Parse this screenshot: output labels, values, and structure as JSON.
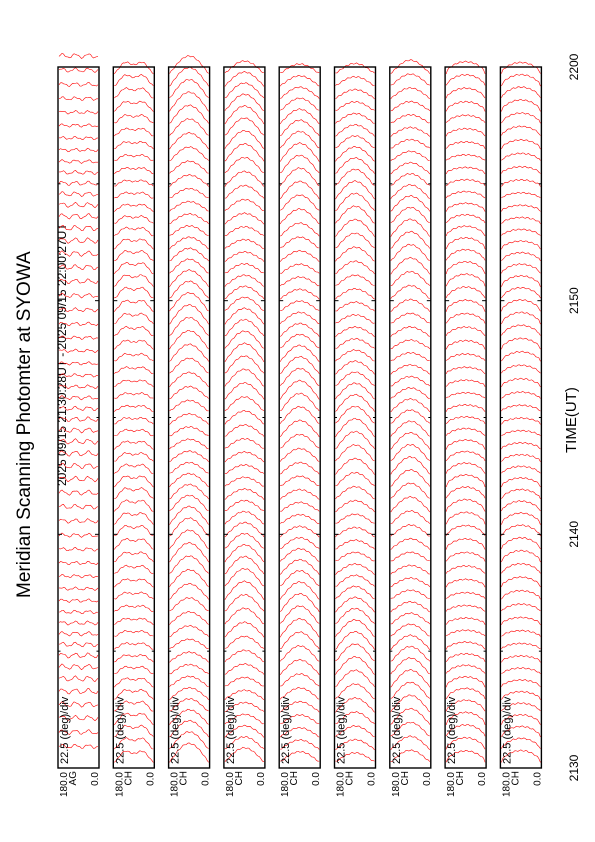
{
  "title": "Meridian Scanning Photomter at SYOWA",
  "time_range": "2025 09/15 21:30:28UT - 2025 09/15 22:00:27UT",
  "chart_data": {
    "type": "line",
    "title": "Meridian Scanning Photomter at SYOWA",
    "subtitle": "2025 09/15 21:30:28UT - 2025 09/15 22:00:27UT",
    "xlabel": "TIME(UT)",
    "x_ticks": [
      "2130",
      "2140",
      "2150",
      "2200"
    ],
    "x_minor_ticks": [
      "2130",
      "2135",
      "2140",
      "2145",
      "2150",
      "2155",
      "2200"
    ],
    "xlim": [
      "2130",
      "2200"
    ],
    "y_ticks": [
      "180.0",
      "0.0"
    ],
    "ylim": [
      0,
      180
    ],
    "line_color": "#ff0000",
    "panels": [
      {
        "channel": "AG",
        "scale": "22.5 (deg)/div",
        "profile": "saturated",
        "amplitude": 0.95
      },
      {
        "channel": "CH",
        "scale": "22.5 (deg)/div",
        "profile": "double-hump",
        "amplitude": 0.72
      },
      {
        "channel": "CH",
        "scale": "22.5 (deg)/div",
        "profile": "arc",
        "amplitude": 0.78
      },
      {
        "channel": "CH",
        "scale": "22.5 (deg)/div",
        "profile": "arc",
        "amplitude": 0.74
      },
      {
        "channel": "CH",
        "scale": "22.5 (deg)/div",
        "profile": "arc",
        "amplitude": 0.75
      },
      {
        "channel": "CH",
        "scale": "22.5 (deg)/div",
        "profile": "arc",
        "amplitude": 0.73
      },
      {
        "channel": "CH",
        "scale": "22.5 (deg)/div",
        "profile": "arc",
        "amplitude": 0.7
      },
      {
        "channel": "CH",
        "scale": "22.5 (deg)/div",
        "profile": "flat-hump",
        "amplitude": 0.55
      },
      {
        "channel": "CH",
        "scale": "22.5 (deg)/div",
        "profile": "flat-hump",
        "amplitude": 0.52
      }
    ]
  }
}
